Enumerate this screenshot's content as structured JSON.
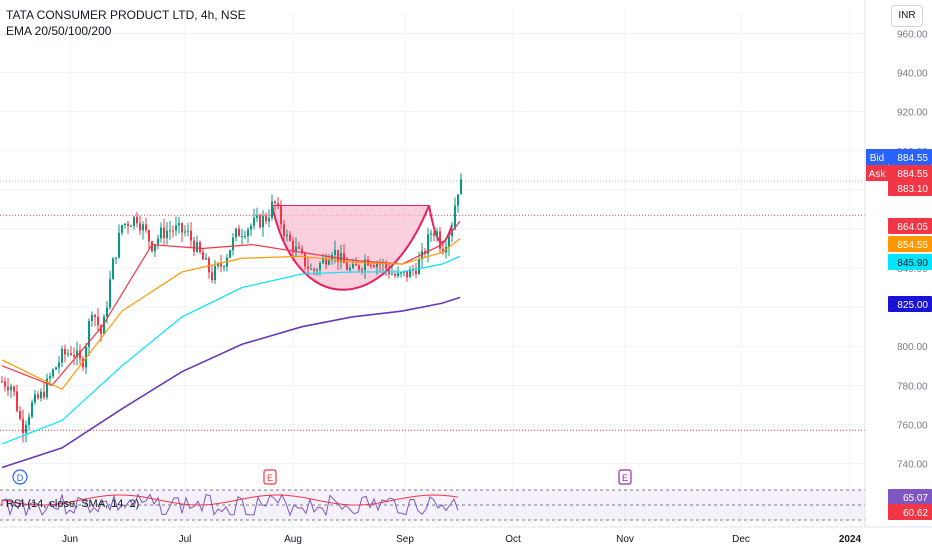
{
  "header": {
    "symbol_line": "TATA CONSUMER PRODUCT LTD, 4h, NSE",
    "indicator_line": "EMA 20/50/100/200",
    "currency": "INR"
  },
  "rsi": {
    "label": "RSI (14, close, SMA, 14, 2)",
    "value_rsi": "65.07",
    "value_sma": "60.62",
    "rsi_color": "#7e57c2",
    "sma_color": "#f23645"
  },
  "price_tags": {
    "bid_label": "Bid",
    "bid_value": "884.55",
    "ask_label": "Ask",
    "ask_value": "884.55",
    "last_value": "883.10",
    "ema20_value": "864.05",
    "ema50_value": "854.55",
    "ema100_value": "845.90",
    "ema200_value": "825.00"
  },
  "event_markers": [
    {
      "letter": "D",
      "month": "May"
    },
    {
      "letter": "E",
      "month": "Aug"
    },
    {
      "letter": "E",
      "month": "Oct"
    }
  ],
  "colors": {
    "up": "#089981",
    "down": "#f23645",
    "ema20": "#f23645",
    "ema50": "#ff9800",
    "ema100": "#00e5ff",
    "ema200": "#673ab7",
    "pattern_fill": "#f8bbd0",
    "pattern_line": "#e91e63"
  },
  "chart_data": {
    "type": "candlestick",
    "title": "TATA CONSUMER PRODUCT LTD, 4h, NSE",
    "y_ticks": [
      740,
      760,
      780,
      800,
      820,
      840,
      860,
      880,
      900,
      920,
      940,
      960
    ],
    "y_tick_labels": [
      "740.00",
      "760.00",
      "780.00",
      "800.00",
      "820.00",
      "840.00",
      "860.00",
      "880.00",
      "900.00",
      "920.00",
      "940.00",
      "960.00"
    ],
    "ylim": [
      728,
      972
    ],
    "x_tick_labels": [
      "Jun",
      "Jul",
      "Aug",
      "Sep",
      "Oct",
      "Nov",
      "Dec",
      "2024"
    ],
    "horizontal_levels": [
      884.55,
      867,
      757
    ],
    "price_path": [
      [
        0,
        782
      ],
      [
        10,
        780
      ],
      [
        20,
        758
      ],
      [
        30,
        770
      ],
      [
        40,
        775
      ],
      [
        50,
        786
      ],
      [
        60,
        795
      ],
      [
        70,
        798
      ],
      [
        80,
        790
      ],
      [
        90,
        820
      ],
      [
        100,
        805
      ],
      [
        110,
        840
      ],
      [
        120,
        862
      ],
      [
        135,
        866
      ],
      [
        150,
        852
      ],
      [
        160,
        858
      ],
      [
        170,
        860
      ],
      [
        185,
        858
      ],
      [
        200,
        845
      ],
      [
        210,
        836
      ],
      [
        220,
        842
      ],
      [
        235,
        858
      ],
      [
        250,
        862
      ],
      [
        265,
        866
      ],
      [
        272,
        874
      ],
      [
        285,
        855
      ],
      [
        300,
        845
      ],
      [
        310,
        838
      ],
      [
        320,
        843
      ],
      [
        330,
        850
      ],
      [
        340,
        843
      ],
      [
        350,
        838
      ],
      [
        365,
        845
      ],
      [
        380,
        842
      ],
      [
        395,
        835
      ],
      [
        410,
        838
      ],
      [
        420,
        845
      ],
      [
        430,
        860
      ],
      [
        435,
        858
      ],
      [
        440,
        850
      ],
      [
        450,
        862
      ],
      [
        455,
        880
      ],
      [
        460,
        883
      ]
    ],
    "series": [
      {
        "name": "EMA 20",
        "values": [
          [
            0,
            790
          ],
          [
            50,
            780
          ],
          [
            100,
            810
          ],
          [
            150,
            852
          ],
          [
            200,
            850
          ],
          [
            250,
            852
          ],
          [
            300,
            848
          ],
          [
            350,
            844
          ],
          [
            400,
            842
          ],
          [
            440,
            852
          ],
          [
            458,
            864
          ]
        ]
      },
      {
        "name": "EMA 50",
        "values": [
          [
            0,
            793
          ],
          [
            60,
            778
          ],
          [
            120,
            818
          ],
          [
            180,
            838
          ],
          [
            240,
            845
          ],
          [
            300,
            846
          ],
          [
            350,
            843
          ],
          [
            400,
            842
          ],
          [
            440,
            848
          ],
          [
            458,
            855
          ]
        ]
      },
      {
        "name": "EMA 100",
        "values": [
          [
            0,
            750
          ],
          [
            60,
            762
          ],
          [
            120,
            790
          ],
          [
            180,
            815
          ],
          [
            240,
            830
          ],
          [
            300,
            837
          ],
          [
            350,
            838
          ],
          [
            400,
            838
          ],
          [
            440,
            842
          ],
          [
            458,
            846
          ]
        ]
      },
      {
        "name": "EMA 200",
        "values": [
          [
            0,
            738
          ],
          [
            60,
            748
          ],
          [
            120,
            768
          ],
          [
            180,
            787
          ],
          [
            240,
            801
          ],
          [
            300,
            810
          ],
          [
            350,
            815
          ],
          [
            400,
            818
          ],
          [
            440,
            822
          ],
          [
            458,
            825
          ]
        ]
      }
    ],
    "cup_pattern": {
      "left_rim": 872,
      "right_rim": 872,
      "bottom": 835
    }
  }
}
